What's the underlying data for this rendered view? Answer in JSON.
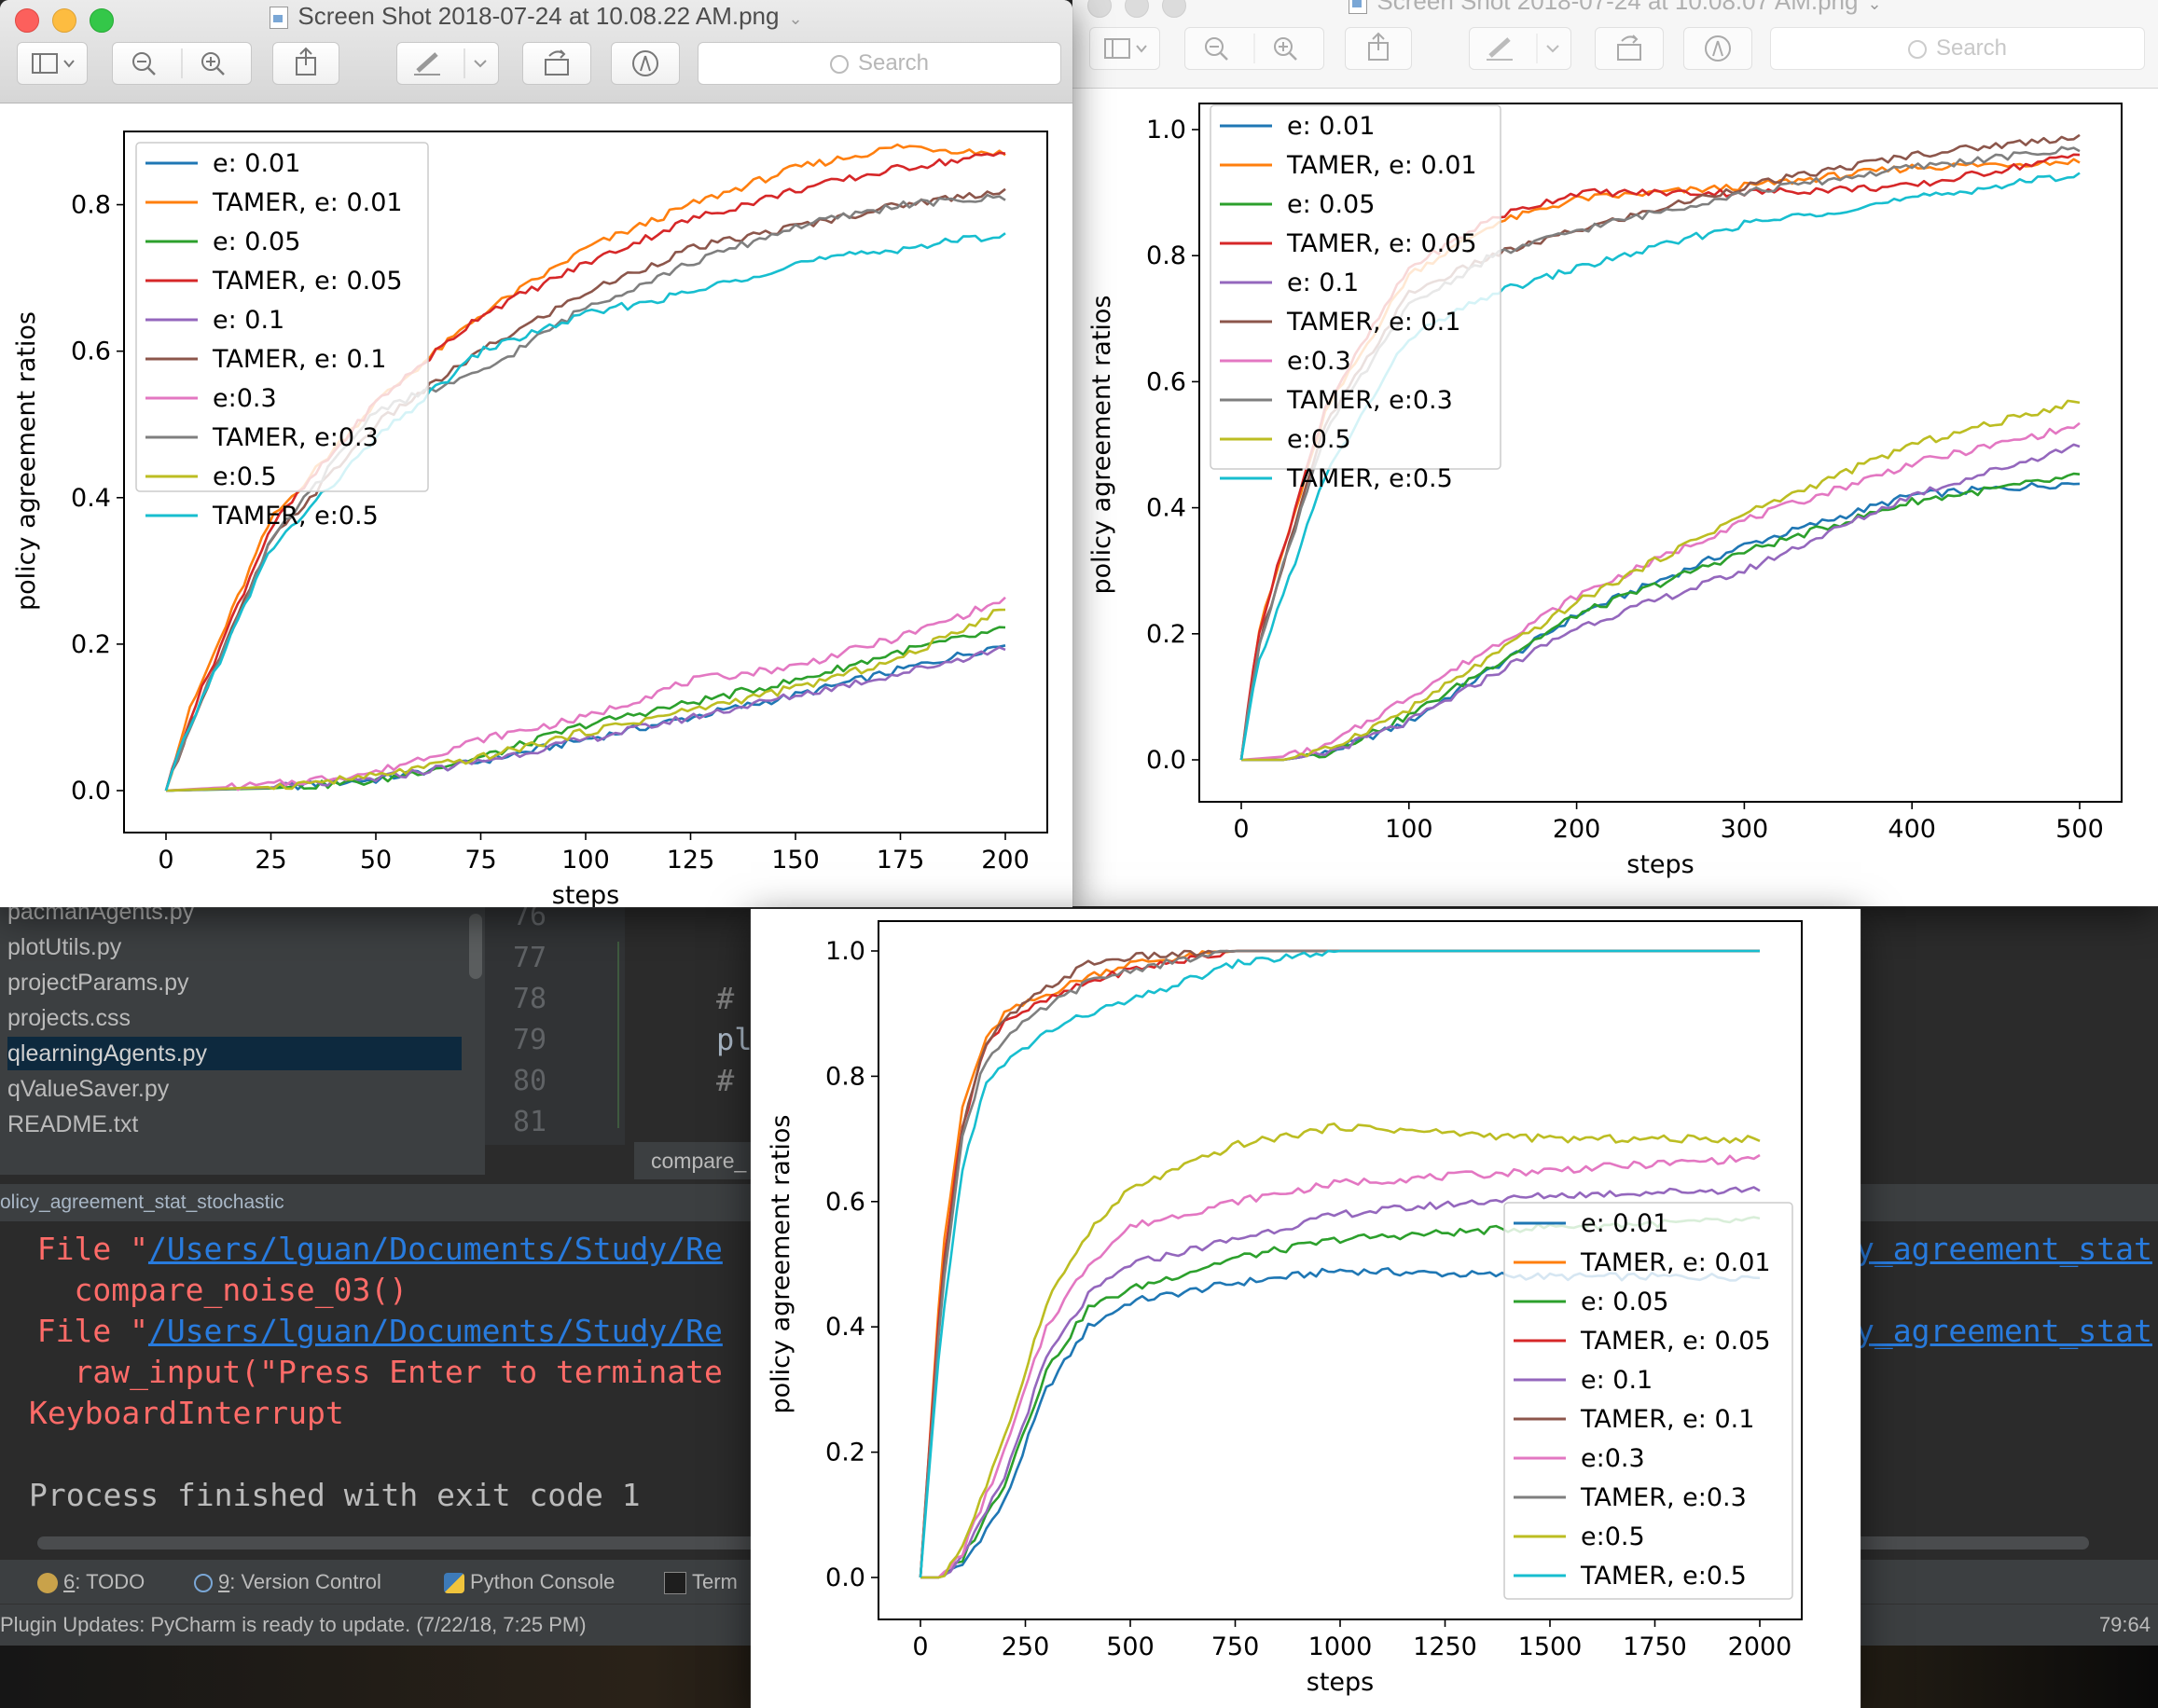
{
  "ide": {
    "project_files": [
      "pacmanAgents.py",
      "plotUtils.py",
      "projectParams.py",
      "projects.css",
      "qlearningAgents.py",
      "qValueSaver.py",
      "README.txt"
    ],
    "selected_file": "qlearningAgents.py",
    "line_numbers": [
      "76",
      "77",
      "78",
      "79",
      "80",
      "81"
    ],
    "code_lines": [
      "",
      "",
      "#",
      "pl",
      "#",
      ""
    ],
    "editor_tab": "compare_",
    "run_tab": "olicy_agreement_stat_stochastic",
    "console": {
      "line1_prefix": "  File \"",
      "line1_path": "/Users/lguan/Documents/Study/Re",
      "line1_tail": "y_agreement_stat",
      "line2": "    compare_noise_03()",
      "line3_prefix": "  File \"",
      "line3_path": "/Users/lguan/Documents/Study/Re",
      "line3_tail": "y_agreement_stat",
      "line4": "    raw_input(\"Press Enter to terminate",
      "line5": "KeyboardInterrupt",
      "line6": "Process finished with exit code 1"
    },
    "tool_windows": [
      {
        "num": "6",
        "label": ": TODO"
      },
      {
        "num": "9",
        "label": ": Version Control"
      },
      {
        "num": "",
        "label": "Python Console"
      },
      {
        "num": "",
        "label": "Term"
      }
    ],
    "status_message": "Plugin Updates: PyCharm is ready to update. (7/22/18, 7:25 PM)",
    "cursor_position": "79:64"
  },
  "windows": [
    {
      "title": "Screen Shot 2018-07-24 at 10.08.22 AM.png",
      "search_placeholder": "Search"
    },
    {
      "title": "Screen Shot 2018-07-24 at 10.08.07 AM.png",
      "search_placeholder": "Search"
    },
    {
      "title": "",
      "search_placeholder": ""
    }
  ],
  "colors": {
    "series": [
      "#1f77b4",
      "#ff7f0e",
      "#2ca02c",
      "#d62728",
      "#9467bd",
      "#8c564b",
      "#e377c2",
      "#7f7f7f",
      "#bcbd22",
      "#17becf"
    ]
  },
  "chart_data": [
    {
      "type": "line",
      "xlabel": "steps",
      "ylabel": "policy agreement ratios",
      "xlim": [
        0,
        200
      ],
      "ylim": [
        0,
        0.9
      ],
      "xticks": [
        0,
        25,
        50,
        75,
        100,
        125,
        150,
        175,
        200
      ],
      "yticks": [
        0.0,
        0.2,
        0.4,
        0.6,
        0.8
      ],
      "legend": "upper left",
      "series": [
        {
          "name": "e: 0.01",
          "x": [
            0,
            25,
            50,
            75,
            100,
            125,
            150,
            175,
            200
          ],
          "values": [
            0,
            0.004,
            0.015,
            0.04,
            0.07,
            0.1,
            0.13,
            0.165,
            0.2
          ]
        },
        {
          "name": "TAMER, e: 0.01",
          "x": [
            0,
            5,
            25,
            50,
            75,
            100,
            125,
            150,
            175,
            200
          ],
          "values": [
            0,
            0.1,
            0.37,
            0.53,
            0.65,
            0.74,
            0.8,
            0.85,
            0.88,
            0.87
          ]
        },
        {
          "name": "e: 0.05",
          "x": [
            0,
            25,
            50,
            75,
            100,
            125,
            150,
            175,
            200
          ],
          "values": [
            0,
            0.003,
            0.013,
            0.045,
            0.09,
            0.12,
            0.15,
            0.19,
            0.22
          ]
        },
        {
          "name": "TAMER, e: 0.05",
          "x": [
            0,
            5,
            25,
            50,
            75,
            100,
            125,
            150,
            175,
            200
          ],
          "values": [
            0,
            0.09,
            0.36,
            0.53,
            0.65,
            0.72,
            0.78,
            0.82,
            0.85,
            0.87
          ]
        },
        {
          "name": "e: 0.1",
          "x": [
            0,
            25,
            50,
            75,
            100,
            125,
            150,
            175,
            200
          ],
          "values": [
            0,
            0.004,
            0.016,
            0.04,
            0.07,
            0.1,
            0.13,
            0.16,
            0.195
          ]
        },
        {
          "name": "TAMER, e: 0.1",
          "x": [
            0,
            5,
            25,
            50,
            75,
            100,
            125,
            150,
            175,
            200
          ],
          "values": [
            0,
            0.08,
            0.34,
            0.5,
            0.6,
            0.68,
            0.74,
            0.77,
            0.8,
            0.82
          ]
        },
        {
          "name": "e:0.3",
          "x": [
            0,
            25,
            50,
            75,
            100,
            125,
            150,
            175,
            200
          ],
          "values": [
            0,
            0.008,
            0.025,
            0.07,
            0.1,
            0.15,
            0.17,
            0.21,
            0.26
          ]
        },
        {
          "name": "TAMER, e:0.3",
          "x": [
            0,
            5,
            25,
            50,
            75,
            100,
            125,
            150,
            175,
            200
          ],
          "values": [
            0,
            0.08,
            0.34,
            0.52,
            0.57,
            0.66,
            0.72,
            0.77,
            0.8,
            0.81
          ]
        },
        {
          "name": "e:0.5",
          "x": [
            0,
            25,
            50,
            75,
            100,
            125,
            150,
            175,
            200
          ],
          "values": [
            0,
            0.005,
            0.02,
            0.045,
            0.08,
            0.11,
            0.14,
            0.18,
            0.25
          ]
        },
        {
          "name": "TAMER, e:0.5",
          "x": [
            0,
            5,
            25,
            50,
            75,
            100,
            125,
            150,
            175,
            200
          ],
          "values": [
            0,
            0.08,
            0.33,
            0.48,
            0.6,
            0.65,
            0.68,
            0.72,
            0.74,
            0.76
          ]
        }
      ]
    },
    {
      "type": "line",
      "xlabel": "steps",
      "ylabel": "policy agreement ratios",
      "xlim": [
        0,
        500
      ],
      "ylim": [
        0,
        1.0
      ],
      "xticks": [
        0,
        100,
        200,
        300,
        400,
        500
      ],
      "yticks": [
        0.0,
        0.2,
        0.4,
        0.6,
        0.8,
        1.0
      ],
      "legend": "upper left",
      "series": [
        {
          "name": "e: 0.01",
          "x": [
            0,
            25,
            50,
            100,
            200,
            300,
            400,
            500
          ],
          "values": [
            0,
            0.0,
            0.01,
            0.06,
            0.23,
            0.34,
            0.42,
            0.44
          ]
        },
        {
          "name": "TAMER, e: 0.01",
          "x": [
            0,
            10,
            50,
            100,
            150,
            200,
            300,
            400,
            500
          ],
          "values": [
            0,
            0.2,
            0.55,
            0.77,
            0.85,
            0.89,
            0.91,
            0.94,
            0.95
          ]
        },
        {
          "name": "e: 0.05",
          "x": [
            0,
            25,
            50,
            100,
            200,
            300,
            400,
            500
          ],
          "values": [
            0,
            0.0,
            0.01,
            0.07,
            0.23,
            0.33,
            0.41,
            0.45
          ]
        },
        {
          "name": "TAMER, e: 0.05",
          "x": [
            0,
            10,
            50,
            100,
            150,
            200,
            300,
            400,
            500
          ],
          "values": [
            0,
            0.2,
            0.56,
            0.78,
            0.86,
            0.9,
            0.9,
            0.91,
            0.96
          ]
        },
        {
          "name": "e: 0.1",
          "x": [
            0,
            25,
            50,
            100,
            200,
            300,
            400,
            500
          ],
          "values": [
            0,
            0.0,
            0.01,
            0.06,
            0.21,
            0.3,
            0.42,
            0.5
          ]
        },
        {
          "name": "TAMER, e: 0.1",
          "x": [
            0,
            10,
            50,
            100,
            150,
            200,
            300,
            400,
            500
          ],
          "values": [
            0,
            0.18,
            0.53,
            0.74,
            0.8,
            0.84,
            0.91,
            0.96,
            0.99
          ]
        },
        {
          "name": "e:0.3",
          "x": [
            0,
            25,
            50,
            100,
            200,
            300,
            400,
            500
          ],
          "values": [
            0,
            0.005,
            0.02,
            0.1,
            0.26,
            0.38,
            0.47,
            0.53
          ]
        },
        {
          "name": "TAMER, e:0.3",
          "x": [
            0,
            10,
            50,
            100,
            150,
            200,
            300,
            400,
            500
          ],
          "values": [
            0,
            0.18,
            0.52,
            0.72,
            0.8,
            0.84,
            0.9,
            0.94,
            0.97
          ]
        },
        {
          "name": "e:0.5",
          "x": [
            0,
            25,
            50,
            100,
            200,
            300,
            400,
            500
          ],
          "values": [
            0,
            0.0,
            0.015,
            0.08,
            0.25,
            0.39,
            0.5,
            0.57
          ]
        },
        {
          "name": "TAMER, e:0.5",
          "x": [
            0,
            10,
            50,
            100,
            150,
            200,
            300,
            400,
            500
          ],
          "values": [
            0,
            0.15,
            0.45,
            0.67,
            0.74,
            0.78,
            0.85,
            0.89,
            0.93
          ]
        }
      ]
    },
    {
      "type": "line",
      "xlabel": "steps",
      "ylabel": "policy agreement ratios",
      "xlim": [
        0,
        2000
      ],
      "ylim": [
        0,
        1.0
      ],
      "xticks": [
        0,
        250,
        500,
        750,
        1000,
        1250,
        1500,
        1750,
        2000
      ],
      "yticks": [
        0.0,
        0.2,
        0.4,
        0.6,
        0.8,
        1.0
      ],
      "legend": "lower right",
      "series": [
        {
          "name": "e: 0.01",
          "x": [
            0,
            50,
            100,
            200,
            300,
            400,
            500,
            750,
            1000,
            1500,
            2000
          ],
          "values": [
            0,
            0.0,
            0.02,
            0.12,
            0.3,
            0.4,
            0.44,
            0.47,
            0.49,
            0.48,
            0.48
          ]
        },
        {
          "name": "TAMER, e: 0.01",
          "x": [
            0,
            50,
            100,
            150,
            200,
            300,
            400,
            500,
            750,
            1000,
            2000
          ],
          "values": [
            0,
            0.5,
            0.75,
            0.85,
            0.9,
            0.93,
            0.96,
            0.98,
            1.0,
            1.0,
            1.0
          ]
        },
        {
          "name": "e: 0.05",
          "x": [
            0,
            50,
            100,
            200,
            300,
            400,
            500,
            750,
            1000,
            1500,
            2000
          ],
          "values": [
            0,
            0.0,
            0.03,
            0.15,
            0.33,
            0.43,
            0.46,
            0.51,
            0.54,
            0.56,
            0.57
          ]
        },
        {
          "name": "TAMER, e: 0.05",
          "x": [
            0,
            50,
            100,
            150,
            200,
            300,
            400,
            500,
            750,
            1000,
            2000
          ],
          "values": [
            0,
            0.48,
            0.72,
            0.84,
            0.89,
            0.92,
            0.95,
            0.97,
            1.0,
            1.0,
            1.0
          ]
        },
        {
          "name": "e: 0.1",
          "x": [
            0,
            50,
            100,
            200,
            300,
            400,
            500,
            750,
            1000,
            1500,
            2000
          ],
          "values": [
            0,
            0.0,
            0.03,
            0.16,
            0.35,
            0.45,
            0.5,
            0.54,
            0.58,
            0.61,
            0.62
          ]
        },
        {
          "name": "TAMER, e: 0.1",
          "x": [
            0,
            50,
            100,
            150,
            200,
            300,
            400,
            500,
            750,
            1000,
            2000
          ],
          "values": [
            0,
            0.46,
            0.72,
            0.84,
            0.89,
            0.94,
            0.98,
            0.99,
            1.0,
            1.0,
            1.0
          ]
        },
        {
          "name": "e:0.3",
          "x": [
            0,
            50,
            100,
            200,
            300,
            400,
            500,
            750,
            1000,
            1500,
            2000
          ],
          "values": [
            0,
            0.0,
            0.04,
            0.2,
            0.4,
            0.5,
            0.56,
            0.6,
            0.63,
            0.65,
            0.67
          ]
        },
        {
          "name": "TAMER, e:0.3",
          "x": [
            0,
            50,
            100,
            150,
            200,
            300,
            400,
            500,
            750,
            1000,
            2000
          ],
          "values": [
            0,
            0.45,
            0.7,
            0.82,
            0.86,
            0.91,
            0.95,
            0.97,
            1.0,
            1.0,
            1.0
          ]
        },
        {
          "name": "e:0.5",
          "x": [
            0,
            50,
            100,
            200,
            300,
            400,
            500,
            750,
            1000,
            1500,
            2000
          ],
          "values": [
            0,
            0.0,
            0.05,
            0.22,
            0.44,
            0.55,
            0.62,
            0.69,
            0.72,
            0.7,
            0.7
          ]
        },
        {
          "name": "TAMER, e:0.5",
          "x": [
            0,
            50,
            100,
            150,
            200,
            300,
            400,
            500,
            750,
            1000,
            2000
          ],
          "values": [
            0,
            0.4,
            0.65,
            0.78,
            0.82,
            0.87,
            0.9,
            0.92,
            0.98,
            1.0,
            1.0
          ]
        }
      ]
    }
  ]
}
